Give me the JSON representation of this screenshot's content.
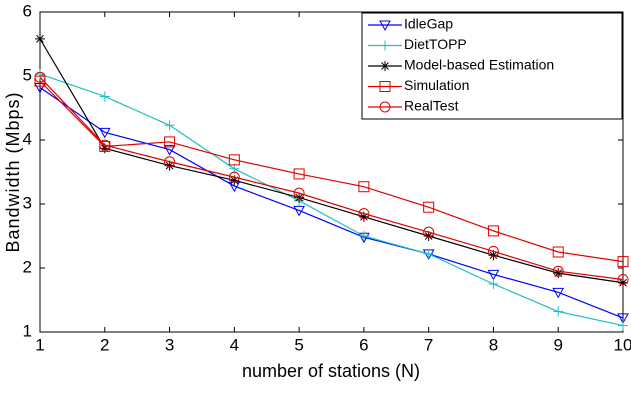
{
  "chart_data": {
    "type": "line",
    "xlabel": "number of stations (N)",
    "ylabel": "Bandwidth (Mbps)",
    "x": [
      1,
      2,
      3,
      4,
      5,
      6,
      7,
      8,
      9,
      10
    ],
    "xlim": [
      1,
      10
    ],
    "xticks": [
      1,
      2,
      3,
      4,
      5,
      6,
      7,
      8,
      9,
      10
    ],
    "ylim": [
      1,
      6
    ],
    "yticks": [
      1,
      2,
      3,
      4,
      5,
      6
    ],
    "legend": "upper right",
    "series": [
      {
        "name": "IdleGap",
        "color": "#0000ff",
        "marker": "triangle-down",
        "values": [
          4.82,
          4.12,
          3.85,
          3.28,
          2.9,
          2.48,
          2.22,
          1.9,
          1.62,
          1.22
        ]
      },
      {
        "name": "DietTOPP",
        "color": "#20c0c0",
        "marker": "plus",
        "values": [
          5.03,
          4.68,
          4.23,
          3.55,
          3.05,
          2.5,
          2.22,
          1.75,
          1.32,
          1.1
        ]
      },
      {
        "name": "Model-based Estimation",
        "color": "#000000",
        "marker": "star",
        "values": [
          5.58,
          3.87,
          3.6,
          3.37,
          3.1,
          2.8,
          2.5,
          2.2,
          1.92,
          1.77
        ]
      },
      {
        "name": "Simulation",
        "color": "#e00000",
        "marker": "square",
        "values": [
          4.92,
          3.9,
          3.97,
          3.69,
          3.47,
          3.27,
          2.95,
          2.58,
          2.25,
          2.1
        ]
      },
      {
        "name": "RealTest",
        "color": "#e00000",
        "marker": "circle",
        "values": [
          4.98,
          3.92,
          3.66,
          3.42,
          3.17,
          2.85,
          2.56,
          2.26,
          1.95,
          1.82
        ]
      }
    ]
  }
}
